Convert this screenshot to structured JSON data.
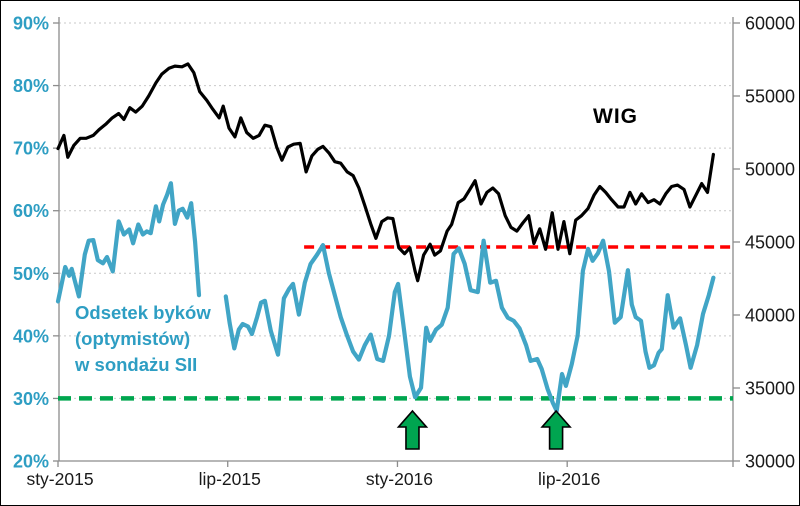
{
  "chart_data": {
    "type": "line",
    "title": "",
    "x_axis": {
      "tick_labels": [
        "sty-2015",
        "lip-2015",
        "sty-2016",
        "lip-2016"
      ],
      "tick_weeks": [
        0,
        26,
        52,
        78
      ],
      "week_range": [
        0,
        103.4
      ],
      "label_color": "#1a1a1a"
    },
    "left_axis": {
      "unit": "%",
      "min": 20,
      "max": 90,
      "step": 10,
      "tick_labels": [
        "90%",
        "80%",
        "70%",
        "60%",
        "50%",
        "40%",
        "30%",
        "20%"
      ],
      "color": "#2E9EC3"
    },
    "right_axis": {
      "min": 30000,
      "max": 60000,
      "step": 5000,
      "tick_labels": [
        "60000",
        "55000",
        "50000",
        "45000",
        "40000",
        "35000",
        "30000"
      ],
      "color": "#1a1a1a"
    },
    "grid": {
      "on": true,
      "color": "#C9C9C9"
    },
    "axis_line_color": "#8C8C8C",
    "series": [
      {
        "name": "WIG",
        "axis": "right",
        "color": "#000000",
        "width": 3.2,
        "points": [
          [
            0,
            51400
          ],
          [
            0.9,
            52300
          ],
          [
            1.5,
            50800
          ],
          [
            2.4,
            51600
          ],
          [
            3.4,
            52100
          ],
          [
            4.3,
            52100
          ],
          [
            5.4,
            52300
          ],
          [
            6.3,
            52700
          ],
          [
            7.4,
            53100
          ],
          [
            8.3,
            53500
          ],
          [
            9.3,
            53800
          ],
          [
            10.1,
            53400
          ],
          [
            11,
            54200
          ],
          [
            11.9,
            53900
          ],
          [
            12.9,
            54300
          ],
          [
            13.9,
            55000
          ],
          [
            15,
            55900
          ],
          [
            15.9,
            56500
          ],
          [
            17,
            56900
          ],
          [
            17.9,
            57050
          ],
          [
            19,
            57000
          ],
          [
            19.9,
            57200
          ],
          [
            20.8,
            56600
          ],
          [
            21.7,
            55300
          ],
          [
            22.8,
            54700
          ],
          [
            23.7,
            54100
          ],
          [
            24.7,
            53500
          ],
          [
            25.3,
            54300
          ],
          [
            26.2,
            52800
          ],
          [
            27.1,
            52200
          ],
          [
            28,
            53500
          ],
          [
            28.9,
            52500
          ],
          [
            29.9,
            52100
          ],
          [
            30.8,
            52300
          ],
          [
            31.7,
            53000
          ],
          [
            32.6,
            52900
          ],
          [
            33.5,
            51500
          ],
          [
            34.3,
            50600
          ],
          [
            35.2,
            51500
          ],
          [
            36.1,
            51700
          ],
          [
            37.1,
            51750
          ],
          [
            38,
            49800
          ],
          [
            38.9,
            50900
          ],
          [
            39.8,
            51350
          ],
          [
            40.6,
            51550
          ],
          [
            41.5,
            51100
          ],
          [
            42.4,
            50500
          ],
          [
            43.3,
            50400
          ],
          [
            44.3,
            49800
          ],
          [
            45.2,
            49550
          ],
          [
            46.1,
            48700
          ],
          [
            47,
            47500
          ],
          [
            47.9,
            46250
          ],
          [
            48.7,
            45250
          ],
          [
            49.6,
            46400
          ],
          [
            50.5,
            46650
          ],
          [
            51.3,
            46600
          ],
          [
            52.2,
            44600
          ],
          [
            53.1,
            44200
          ],
          [
            53.9,
            44600
          ],
          [
            54.7,
            43000
          ],
          [
            55.1,
            42350
          ],
          [
            56,
            44100
          ],
          [
            57,
            44850
          ],
          [
            57.7,
            44100
          ],
          [
            58.6,
            44400
          ],
          [
            59.6,
            45750
          ],
          [
            60.3,
            46200
          ],
          [
            61.3,
            47700
          ],
          [
            62.2,
            47950
          ],
          [
            63.1,
            48600
          ],
          [
            63.9,
            49200
          ],
          [
            64.8,
            47600
          ],
          [
            65.7,
            48400
          ],
          [
            66.6,
            48700
          ],
          [
            67.5,
            48300
          ],
          [
            68.5,
            46800
          ],
          [
            69.4,
            46000
          ],
          [
            70.3,
            45750
          ],
          [
            71.2,
            46300
          ],
          [
            72.1,
            46800
          ],
          [
            72.9,
            44900
          ],
          [
            73.8,
            45900
          ],
          [
            74.7,
            44500
          ],
          [
            75.7,
            47000
          ],
          [
            76.6,
            44500
          ],
          [
            77.5,
            46400
          ],
          [
            78.4,
            44200
          ],
          [
            79.3,
            46500
          ],
          [
            80.2,
            46800
          ],
          [
            81.2,
            47300
          ],
          [
            82.1,
            48200
          ],
          [
            83,
            48800
          ],
          [
            83.9,
            48400
          ],
          [
            84.8,
            47900
          ],
          [
            85.8,
            47400
          ],
          [
            86.7,
            47400
          ],
          [
            87.6,
            48400
          ],
          [
            88.5,
            47600
          ],
          [
            89.4,
            48300
          ],
          [
            90.4,
            47700
          ],
          [
            91.3,
            47900
          ],
          [
            92.2,
            47600
          ],
          [
            93.1,
            48300
          ],
          [
            94,
            48800
          ],
          [
            94.9,
            48900
          ],
          [
            95.9,
            48600
          ],
          [
            96.8,
            47400
          ],
          [
            97.7,
            48200
          ],
          [
            98.6,
            49000
          ],
          [
            99.5,
            48400
          ],
          [
            100.4,
            51000
          ]
        ]
      },
      {
        "name": "Odsetek byków (optymistów) w sondażu SII",
        "axis": "left",
        "color": "#41A5C6",
        "width": 4.2,
        "points": [
          [
            0,
            45.5
          ],
          [
            1.1,
            51.0
          ],
          [
            1.7,
            49.6
          ],
          [
            2.1,
            50.7
          ],
          [
            3.2,
            46.3
          ],
          [
            4.1,
            53.0
          ],
          [
            4.7,
            55.2
          ],
          [
            5.4,
            55.3
          ],
          [
            6.1,
            52.1
          ],
          [
            6.9,
            51.6
          ],
          [
            7.5,
            52.6
          ],
          [
            8.4,
            50.3
          ],
          [
            9.3,
            58.3
          ],
          [
            10.1,
            56.2
          ],
          [
            10.9,
            57.0
          ],
          [
            11.5,
            54.8
          ],
          [
            12.3,
            57.8
          ],
          [
            13,
            56.2
          ],
          [
            13.6,
            56.7
          ],
          [
            14.2,
            56.4
          ],
          [
            15,
            60.7
          ],
          [
            15.5,
            58.3
          ],
          [
            16.1,
            61.0
          ],
          [
            16.7,
            62.5
          ],
          [
            17.3,
            64.4
          ],
          [
            17.9,
            57.9
          ],
          [
            18.5,
            60.0
          ],
          [
            19.1,
            60.3
          ],
          [
            19.8,
            58.9
          ],
          [
            20.4,
            61.2
          ],
          [
            21,
            55.0
          ],
          [
            21.6,
            46.5
          ],
          [
            23.5,
            null
          ],
          [
            25.7,
            46.3
          ],
          [
            26.3,
            42.0
          ],
          [
            27,
            38.0
          ],
          [
            27.7,
            41.0
          ],
          [
            28.3,
            41.9
          ],
          [
            29.1,
            41.5
          ],
          [
            29.7,
            40.3
          ],
          [
            30.5,
            43.0
          ],
          [
            31.1,
            45.3
          ],
          [
            31.7,
            45.6
          ],
          [
            32.6,
            40.8
          ],
          [
            33.7,
            37.0
          ],
          [
            34.6,
            46.0
          ],
          [
            35.4,
            47.5
          ],
          [
            36,
            48.3
          ],
          [
            36.9,
            43.4
          ],
          [
            37.8,
            48.5
          ],
          [
            38.7,
            51.5
          ],
          [
            39.7,
            53.0
          ],
          [
            40.6,
            54.5
          ],
          [
            41.5,
            50.0
          ],
          [
            42.4,
            46.5
          ],
          [
            43.3,
            43.0
          ],
          [
            44.3,
            40.0
          ],
          [
            45.2,
            37.5
          ],
          [
            46.1,
            36.2
          ],
          [
            47,
            38.5
          ],
          [
            47.9,
            40.2
          ],
          [
            48.9,
            36.3
          ],
          [
            49.8,
            36.0
          ],
          [
            50.7,
            40.0
          ],
          [
            51.6,
            47.0
          ],
          [
            52.1,
            48.3
          ],
          [
            53,
            41.0
          ],
          [
            53.9,
            33.5
          ],
          [
            54.7,
            30.2
          ],
          [
            55.6,
            31.7
          ],
          [
            56.4,
            41.3
          ],
          [
            57,
            39.2
          ],
          [
            57.9,
            41.0
          ],
          [
            58.8,
            41.8
          ],
          [
            59.7,
            44.5
          ],
          [
            60.6,
            53.1
          ],
          [
            61.4,
            54.0
          ],
          [
            62.3,
            51.5
          ],
          [
            63.2,
            47.3
          ],
          [
            64.3,
            47.0
          ],
          [
            65.2,
            55.2
          ],
          [
            66.2,
            48.5
          ],
          [
            67.1,
            48.8
          ],
          [
            68,
            44.5
          ],
          [
            68.9,
            42.9
          ],
          [
            69.8,
            42.4
          ],
          [
            70.7,
            41.2
          ],
          [
            71.7,
            38.5
          ],
          [
            72.4,
            36.0
          ],
          [
            73.4,
            36.3
          ],
          [
            74.1,
            34.7
          ],
          [
            75,
            31.5
          ],
          [
            75.8,
            29.3
          ],
          [
            76.4,
            28.0
          ],
          [
            77.2,
            33.9
          ],
          [
            77.8,
            32.0
          ],
          [
            78.7,
            35.5
          ],
          [
            79.6,
            40.0
          ],
          [
            80.4,
            50.4
          ],
          [
            81.2,
            53.9
          ],
          [
            81.9,
            52.0
          ],
          [
            82.7,
            53.2
          ],
          [
            83.5,
            55.2
          ],
          [
            84.4,
            50.3
          ],
          [
            85.3,
            42.1
          ],
          [
            86.2,
            43.0
          ],
          [
            87.3,
            50.5
          ],
          [
            87.9,
            45.0
          ],
          [
            88.5,
            43.0
          ],
          [
            89.3,
            42.4
          ],
          [
            90,
            37.5
          ],
          [
            90.6,
            34.9
          ],
          [
            91.3,
            35.3
          ],
          [
            92,
            37.3
          ],
          [
            92.5,
            37.9
          ],
          [
            93.4,
            46.5
          ],
          [
            94.3,
            41.3
          ],
          [
            95.3,
            42.8
          ],
          [
            96.2,
            38.5
          ],
          [
            96.9,
            34.9
          ],
          [
            97.9,
            38.5
          ],
          [
            98.8,
            43.5
          ],
          [
            99.7,
            46.5
          ],
          [
            100.4,
            49.3
          ]
        ]
      }
    ],
    "ref_lines": [
      {
        "name": "resistance-level",
        "axis": "left",
        "value": 54.2,
        "from_week": 37.7,
        "to_week": 103.4,
        "color": "#FF0000",
        "width": 3.5,
        "dash": "10 6"
      },
      {
        "name": "bulls-30pct-level",
        "axis": "left",
        "value": 30,
        "from_week": 0,
        "to_week": 103.4,
        "color": "#00A64F",
        "width": 4.5,
        "dash": "13 8"
      }
    ],
    "arrows": {
      "direction": "up",
      "fill": "#00A550",
      "outline": "#000000",
      "weeks": [
        54.3,
        76.3
      ]
    },
    "annotations": {
      "wig": {
        "text": "WIG",
        "color": "#000000"
      },
      "bulls": {
        "lines": [
          "Odsetek byków",
          "(optymistów)",
          "w sondażu SII"
        ],
        "color": "#2E9EC3"
      }
    }
  }
}
